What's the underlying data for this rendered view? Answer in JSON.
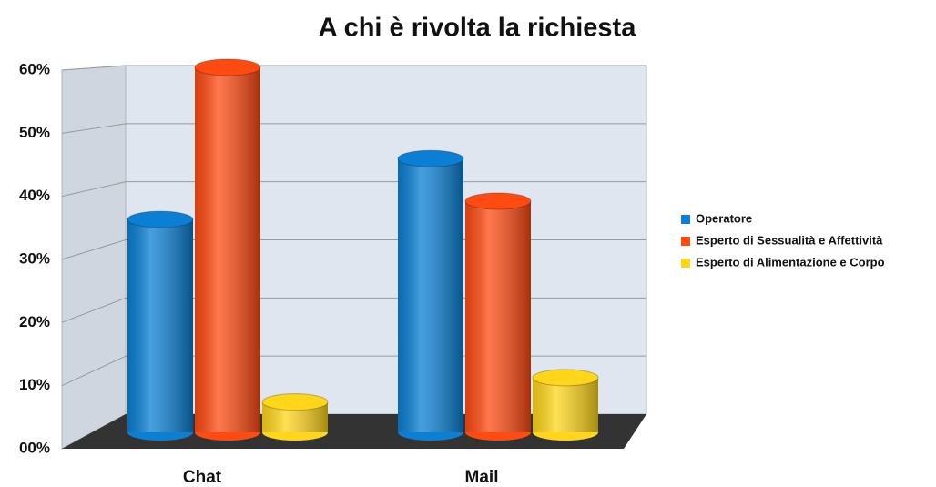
{
  "chart_data": {
    "type": "bar3d",
    "title": "A chi è rivolta la richiesta",
    "categories": [
      "Chat",
      "Mail"
    ],
    "series": [
      {
        "name": "Operatore",
        "color": "#0a7fd4",
        "values": [
          35,
          45
        ]
      },
      {
        "name": "Esperto di Sessualità e Affettività",
        "color": "#ff4a12",
        "values": [
          60,
          38
        ]
      },
      {
        "name": "Esperto di Alimentazione e Corpo",
        "color": "#ffd61a",
        "values": [
          5,
          9
        ]
      }
    ],
    "ylim": [
      0,
      60
    ],
    "yticks": [
      {
        "value": 0,
        "label": "00%"
      },
      {
        "value": 10,
        "label": "10%"
      },
      {
        "value": 20,
        "label": "20%"
      },
      {
        "value": 30,
        "label": "30%"
      },
      {
        "value": 40,
        "label": "40%"
      },
      {
        "value": 50,
        "label": "50%"
      },
      {
        "value": 60,
        "label": "60%"
      }
    ],
    "grid": true,
    "legend": "right"
  }
}
